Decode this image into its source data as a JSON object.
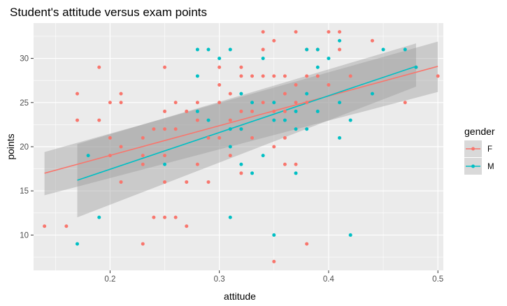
{
  "chart_data": {
    "type": "scatter",
    "title": "Student's attitude versus exam points",
    "xlabel": "attitude",
    "ylabel": "points",
    "xlim": [
      0.13,
      0.505
    ],
    "ylim": [
      6.0,
      34.0
    ],
    "x_ticks": [
      0.2,
      0.3,
      0.4,
      0.5
    ],
    "x_tick_labels": [
      "0.2",
      "0.3",
      "0.4",
      "0.5"
    ],
    "y_ticks": [
      10,
      15,
      20,
      25,
      30
    ],
    "y_tick_labels": [
      "10",
      "15",
      "20",
      "25",
      "30"
    ],
    "grid": true,
    "legend": {
      "title": "gender",
      "placement": "right"
    },
    "series": [
      {
        "name": "F",
        "color": "#F8766D",
        "points": [
          [
            0.14,
            11
          ],
          [
            0.16,
            11
          ],
          [
            0.17,
            26
          ],
          [
            0.17,
            23
          ],
          [
            0.19,
            29
          ],
          [
            0.19,
            23
          ],
          [
            0.2,
            25
          ],
          [
            0.2,
            21
          ],
          [
            0.2,
            19
          ],
          [
            0.21,
            26
          ],
          [
            0.21,
            25
          ],
          [
            0.21,
            20
          ],
          [
            0.21,
            16
          ],
          [
            0.23,
            21
          ],
          [
            0.23,
            19
          ],
          [
            0.23,
            18
          ],
          [
            0.23,
            9
          ],
          [
            0.24,
            22
          ],
          [
            0.24,
            12
          ],
          [
            0.25,
            29
          ],
          [
            0.25,
            24
          ],
          [
            0.25,
            22
          ],
          [
            0.25,
            19
          ],
          [
            0.25,
            16
          ],
          [
            0.25,
            12
          ],
          [
            0.26,
            25
          ],
          [
            0.26,
            22
          ],
          [
            0.26,
            12
          ],
          [
            0.27,
            24
          ],
          [
            0.27,
            16
          ],
          [
            0.27,
            11
          ],
          [
            0.28,
            25
          ],
          [
            0.28,
            23
          ],
          [
            0.28,
            18
          ],
          [
            0.29,
            21
          ],
          [
            0.29,
            16
          ],
          [
            0.3,
            29
          ],
          [
            0.3,
            27
          ],
          [
            0.3,
            25
          ],
          [
            0.3,
            21
          ],
          [
            0.31,
            26
          ],
          [
            0.31,
            23
          ],
          [
            0.31,
            19
          ],
          [
            0.32,
            29
          ],
          [
            0.32,
            28
          ],
          [
            0.32,
            24
          ],
          [
            0.32,
            22
          ],
          [
            0.32,
            17
          ],
          [
            0.33,
            28
          ],
          [
            0.33,
            24
          ],
          [
            0.33,
            21
          ],
          [
            0.34,
            33
          ],
          [
            0.34,
            31
          ],
          [
            0.34,
            28
          ],
          [
            0.34,
            25
          ],
          [
            0.35,
            32
          ],
          [
            0.35,
            28
          ],
          [
            0.35,
            24
          ],
          [
            0.35,
            20
          ],
          [
            0.35,
            7
          ],
          [
            0.36,
            28
          ],
          [
            0.36,
            26
          ],
          [
            0.36,
            24
          ],
          [
            0.36,
            21
          ],
          [
            0.36,
            18
          ],
          [
            0.37,
            33
          ],
          [
            0.37,
            27
          ],
          [
            0.37,
            25
          ],
          [
            0.37,
            18
          ],
          [
            0.38,
            31
          ],
          [
            0.38,
            28
          ],
          [
            0.38,
            25
          ],
          [
            0.38,
            9
          ],
          [
            0.39,
            31
          ],
          [
            0.39,
            28
          ],
          [
            0.4,
            33
          ],
          [
            0.4,
            27
          ],
          [
            0.41,
            33
          ],
          [
            0.41,
            31
          ],
          [
            0.42,
            28
          ],
          [
            0.44,
            32
          ],
          [
            0.47,
            25
          ],
          [
            0.48,
            29
          ],
          [
            0.5,
            28
          ]
        ],
        "fit": {
          "x": [
            0.14,
            0.5
          ],
          "y": [
            17.0,
            29.1
          ],
          "ci_low": [
            14.5,
            26.2
          ],
          "ci_high": [
            19.4,
            31.9
          ]
        }
      },
      {
        "name": "M",
        "color": "#00BFC4",
        "points": [
          [
            0.17,
            9
          ],
          [
            0.18,
            19
          ],
          [
            0.19,
            12
          ],
          [
            0.25,
            18
          ],
          [
            0.28,
            31
          ],
          [
            0.28,
            28
          ],
          [
            0.28,
            24
          ],
          [
            0.29,
            31
          ],
          [
            0.29,
            23
          ],
          [
            0.3,
            30
          ],
          [
            0.31,
            31
          ],
          [
            0.31,
            22
          ],
          [
            0.31,
            20
          ],
          [
            0.31,
            12
          ],
          [
            0.32,
            26
          ],
          [
            0.32,
            22
          ],
          [
            0.32,
            18
          ],
          [
            0.33,
            25
          ],
          [
            0.33,
            17
          ],
          [
            0.34,
            30
          ],
          [
            0.34,
            19
          ],
          [
            0.35,
            25
          ],
          [
            0.35,
            23
          ],
          [
            0.35,
            10
          ],
          [
            0.36,
            23
          ],
          [
            0.37,
            24
          ],
          [
            0.37,
            22
          ],
          [
            0.37,
            17
          ],
          [
            0.38,
            31
          ],
          [
            0.38,
            26
          ],
          [
            0.38,
            22
          ],
          [
            0.39,
            31
          ],
          [
            0.39,
            29
          ],
          [
            0.39,
            24
          ],
          [
            0.4,
            30
          ],
          [
            0.41,
            32
          ],
          [
            0.41,
            25
          ],
          [
            0.41,
            21
          ],
          [
            0.42,
            23
          ],
          [
            0.42,
            10
          ],
          [
            0.44,
            26
          ],
          [
            0.45,
            31
          ],
          [
            0.47,
            31
          ],
          [
            0.48,
            29
          ]
        ],
        "fit": {
          "x": [
            0.17,
            0.48
          ],
          "y": [
            16.2,
            29.1
          ],
          "ci_low": [
            12.0,
            26.8
          ],
          "ci_high": [
            20.3,
            31.7
          ]
        }
      }
    ]
  }
}
